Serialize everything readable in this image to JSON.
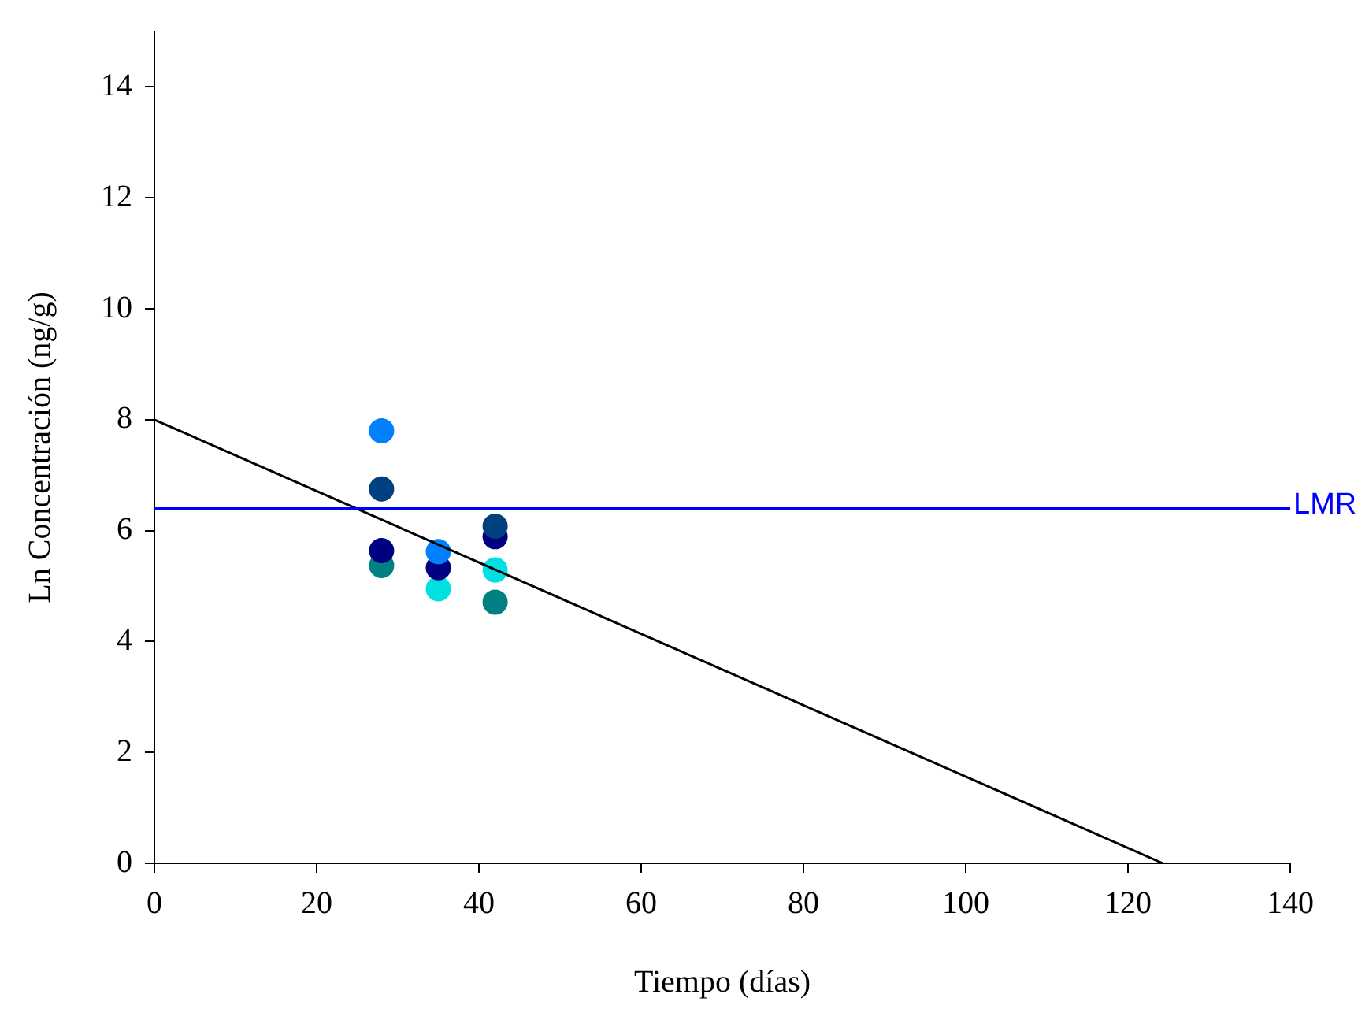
{
  "chart_data": {
    "type": "scatter",
    "xlabel": "Tiempo (días)",
    "ylabel": "Ln Concentración (ng/g)",
    "xlim": [
      0,
      140
    ],
    "xticks": [
      0,
      20,
      40,
      60,
      80,
      100,
      120,
      140
    ],
    "ylim": [
      0,
      15
    ],
    "yticks": [
      0,
      2,
      4,
      6,
      8,
      10,
      12,
      14
    ],
    "grid": false,
    "legend": false,
    "marker": "circle",
    "series": [
      {
        "color": "#0080ff",
        "x": [
          28,
          35
        ],
        "values": [
          7.8,
          5.62
        ]
      },
      {
        "color": "#004080",
        "x": [
          28,
          35,
          42
        ],
        "values": [
          6.75,
          null,
          6.08
        ]
      },
      {
        "color": "#000080",
        "x": [
          28,
          35,
          42
        ],
        "values": [
          5.64,
          5.33,
          5.89
        ]
      },
      {
        "color": "#008080",
        "x": [
          28,
          42
        ],
        "values": [
          5.37,
          4.71
        ]
      },
      {
        "color": "#00e0e0",
        "x": [
          35,
          42
        ],
        "values": [
          4.95,
          5.29
        ]
      },
      {
        "type": "line",
        "color": "#000000",
        "x": [
          0,
          124.3
        ],
        "values": [
          8.0,
          0
        ],
        "marker": "none",
        "line_style": "solid"
      }
    ],
    "ref_lines": [
      {
        "axis": "y",
        "value": 6.4,
        "label": "LMR",
        "color": "#0000ff"
      }
    ]
  }
}
